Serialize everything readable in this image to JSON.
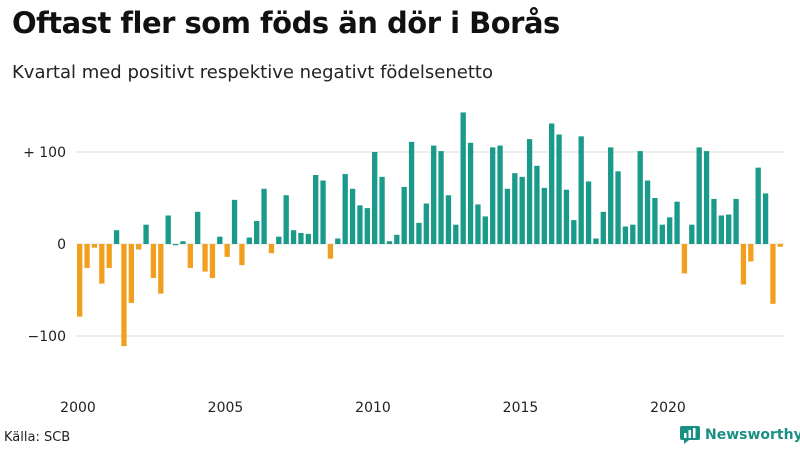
{
  "header": {
    "title": "Oftast fler som föds än dör i Borås",
    "subtitle": "Kvartal med positivt respektive negativt födelsenetto"
  },
  "footer": {
    "source": "Källa: SCB",
    "brand": "Newsworthy"
  },
  "colors": {
    "positive": "#1a9a8a",
    "negative": "#f29e1f",
    "gridline": "#dddddd",
    "brand": "#1a8f84"
  },
  "chart_data": {
    "type": "bar",
    "title": "Oftast fler som föds än dör i Borås",
    "subtitle": "Kvartal med positivt respektive negativt födelsenetto",
    "xlabel": "",
    "ylabel": "",
    "ylim": [
      -120,
      150
    ],
    "y_ticks": [
      {
        "value": 100,
        "label": "+ 100"
      },
      {
        "value": 0,
        "label": "0"
      },
      {
        "value": -100,
        "label": "−100"
      }
    ],
    "x_ticks": [
      "2000",
      "2005",
      "2010",
      "2015",
      "2020"
    ],
    "grid": true,
    "legend": "none",
    "start_year": 2000,
    "period": "quarter",
    "values": [
      -79,
      -26,
      -4,
      -43,
      -26,
      15,
      -111,
      -64,
      -6,
      21,
      -37,
      -54,
      31,
      0,
      3,
      -26,
      35,
      -30,
      -37,
      8,
      -14,
      48,
      -23,
      7,
      25,
      60,
      -10,
      8,
      53,
      15,
      12,
      11,
      75,
      69,
      -16,
      6,
      76,
      60,
      42,
      39,
      100,
      73,
      3,
      10,
      62,
      111,
      23,
      44,
      107,
      101,
      53,
      21,
      143,
      110,
      43,
      30,
      105,
      107,
      60,
      77,
      73,
      114,
      85,
      61,
      131,
      119,
      59,
      26,
      117,
      68,
      6,
      35,
      105,
      79,
      19,
      21,
      101,
      69,
      50,
      21,
      29,
      46,
      -32,
      21,
      105,
      101,
      49,
      31,
      32,
      49,
      -44,
      -19,
      83,
      55,
      -65,
      -3
    ]
  }
}
